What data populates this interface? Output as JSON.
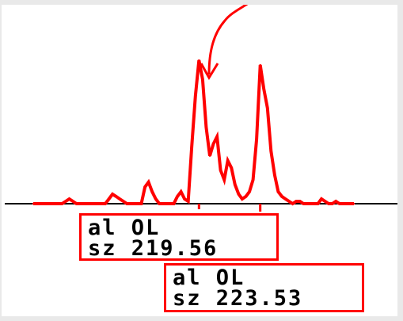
{
  "colors": {
    "trace": "#ff0000",
    "axis": "#000000",
    "frame": "#ff0000",
    "background": "#ffffff"
  },
  "chart_data": {
    "type": "line",
    "title": "",
    "xlabel": "",
    "ylabel": "",
    "series": [
      {
        "values": [
          0,
          0,
          0,
          0,
          0,
          0,
          0,
          0,
          0,
          1,
          2,
          1,
          0,
          0,
          0,
          0,
          0,
          0,
          0,
          0,
          0,
          2,
          4,
          3,
          2,
          1,
          0,
          0,
          0,
          0,
          0,
          7,
          9,
          5,
          2,
          0,
          0,
          0,
          0,
          0,
          3,
          5,
          2,
          1,
          24,
          45,
          60,
          52,
          32,
          20,
          25,
          28,
          14,
          10,
          18,
          15,
          8,
          4,
          2,
          3,
          5,
          10,
          27,
          58,
          48,
          40,
          22,
          12,
          5,
          3,
          2,
          1,
          0,
          1,
          1,
          0,
          0,
          0,
          0,
          0,
          2,
          1,
          0,
          0,
          1,
          0,
          0,
          0,
          0,
          0
        ]
      }
    ],
    "peaks": [
      {
        "index": 46
      },
      {
        "index": 63
      }
    ],
    "annotations": [
      {
        "line1": "al OL",
        "line2": "sz 219.56"
      },
      {
        "line1": "al OL",
        "line2": "sz 223.53"
      }
    ],
    "arrow": "pointing down to first peak"
  }
}
